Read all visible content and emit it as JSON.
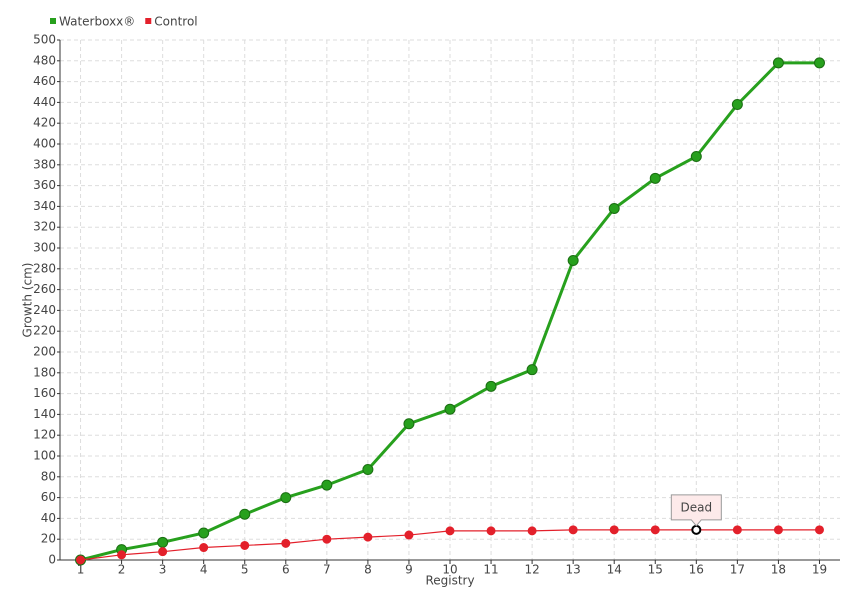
{
  "chart_data": {
    "type": "line",
    "x_label": "Registry",
    "y_label": "Growth (cm)",
    "categories": [
      "1",
      "2",
      "3",
      "4",
      "5",
      "6",
      "7",
      "8",
      "9",
      "10",
      "11",
      "12",
      "13",
      "14",
      "15",
      "16",
      "17",
      "18",
      "19"
    ],
    "series": [
      {
        "name": "Waterboxx®",
        "color": "#27a01d",
        "values": [
          0,
          10,
          17,
          26,
          44,
          60,
          72,
          87,
          131,
          145,
          167,
          183,
          288,
          338,
          367,
          388,
          438,
          478,
          478
        ]
      },
      {
        "name": "Control",
        "color": "#e3202b",
        "values": [
          0,
          5,
          8,
          12,
          14,
          16,
          20,
          22,
          24,
          28,
          28,
          28,
          29,
          29,
          29,
          29,
          29,
          29,
          29
        ]
      }
    ],
    "annotations": [
      {
        "text": "Dead",
        "series": "Control",
        "category": "16"
      }
    ],
    "ylim": [
      0,
      500
    ],
    "yticks": [
      0,
      20,
      40,
      60,
      80,
      100,
      120,
      140,
      160,
      180,
      200,
      220,
      240,
      260,
      280,
      300,
      320,
      340,
      360,
      380,
      400,
      420,
      440,
      460,
      480,
      500
    ],
    "grid": true
  }
}
